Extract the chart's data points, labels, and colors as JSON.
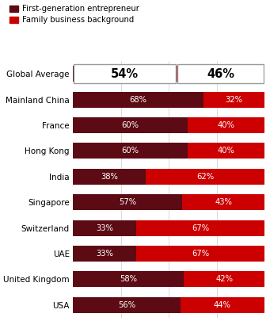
{
  "categories": [
    "Global Average",
    "Mainland China",
    "France",
    "Hong Kong",
    "India",
    "Singapore",
    "Switzerland",
    "UAE",
    "United Kingdom",
    "USA"
  ],
  "first_gen": [
    54,
    68,
    60,
    60,
    38,
    57,
    33,
    33,
    58,
    56
  ],
  "family_biz": [
    46,
    32,
    40,
    40,
    62,
    43,
    67,
    67,
    42,
    44
  ],
  "color_first_gen": "#5c0a14",
  "color_family_biz": "#cc0000",
  "legend_labels": [
    "First-generation entrepreneur",
    "Family business background"
  ],
  "background_color": "#ffffff",
  "label_fontsize": 7.5,
  "bar_label_fontsize": 7.2,
  "global_avg_fontsize": 10.5,
  "bar_height": 0.62,
  "grid_color": "#cccccc",
  "grid_linewidth": 0.5
}
